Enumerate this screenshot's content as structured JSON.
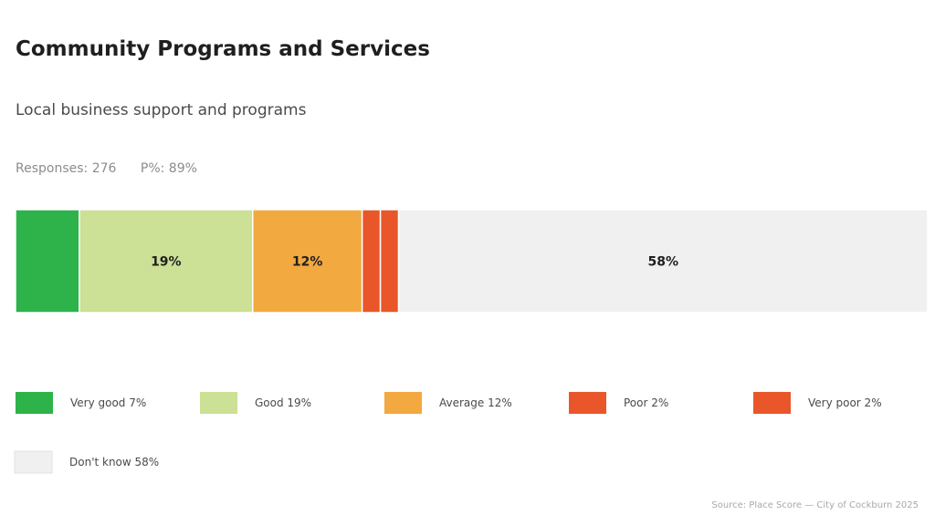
{
  "chart_data": {
    "type": "bar",
    "orientation": "horizontal-stacked-100",
    "title": "Community Programs and Services",
    "subtitle": "Local business support and programs",
    "responses_label": "Responses: 276",
    "p_label": "P%: 89%",
    "categories": [
      "Very good",
      "Good",
      "Average",
      "Poor",
      "Very poor",
      "Don't know"
    ],
    "values": [
      7,
      19,
      12,
      2,
      2,
      58
    ],
    "unit": "%",
    "colors": [
      "#2db34a",
      "#cce096",
      "#f2a93f",
      "#e9562a",
      "#e9562a",
      "#f0f0f0"
    ],
    "segment_labels": [
      "",
      "19%",
      "12%",
      "",
      "",
      "58%"
    ],
    "legend": [
      {
        "label": "Very good  7%"
      },
      {
        "label": "Good  19%"
      },
      {
        "label": "Average  12%"
      },
      {
        "label": "Poor  2%"
      },
      {
        "label": "Very poor  2%"
      },
      {
        "label": "Don't know  58%"
      }
    ],
    "legend_placement": "bottom",
    "source": "Source: Place Score — City of Cockburn 2025",
    "grid": false
  }
}
